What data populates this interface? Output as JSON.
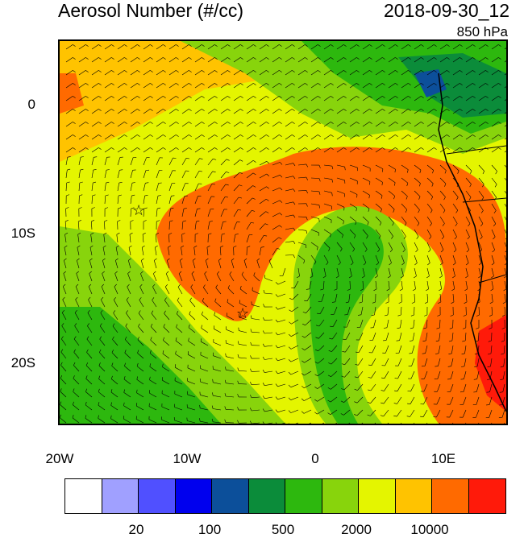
{
  "title": "Aerosol Number (#/cc)",
  "datetime": "2018-09-30_12",
  "level": "850 hPa",
  "map": {
    "region": "Southeast Atlantic / Southwest Africa",
    "lon_range": [
      "20W",
      "15E"
    ],
    "lat_range": [
      "5N",
      "25S"
    ],
    "y_ticks": [
      "0",
      "10S",
      "20S"
    ],
    "x_ticks": [
      "20W",
      "10W",
      "0",
      "10E"
    ],
    "markers": [
      "star",
      "star"
    ],
    "overlay": "wind barbs"
  },
  "colorbar": {
    "colors": [
      "#ffffff",
      "#a0a0ff",
      "#5050ff",
      "#0000ee",
      "#0c4f9a",
      "#0b8c3a",
      "#2db80e",
      "#88d40c",
      "#e4f500",
      "#ffc300",
      "#ff6a00",
      "#ff1a0a"
    ],
    "labels": [
      "20",
      "100",
      "500",
      "2000",
      "10000"
    ]
  }
}
